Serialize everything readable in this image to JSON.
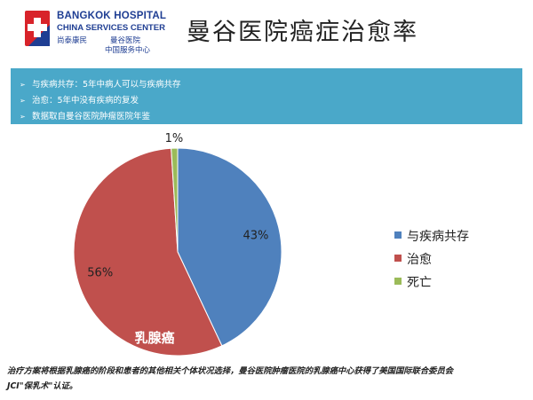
{
  "logo": {
    "en_line1": "BANGKOK HOSPITAL",
    "en_line2": "CHINA SERVICES CENTER",
    "cn_left": "尚泰康民",
    "cn_right1": "曼谷医院",
    "cn_right2": "中国服务中心"
  },
  "title": "曼谷医院癌症治愈率",
  "banner": {
    "items": [
      "与疾病共存：5年中病人可以与疾病共存",
      "治愈：5年中没有疾病的复发",
      "数据取自曼谷医院肿瘤医院年鉴"
    ]
  },
  "colors": {
    "banner": "#4aa8c9",
    "brand": "#1f3e93",
    "brand_red": "#d8232a"
  },
  "chart_data": {
    "type": "pie",
    "slices": [
      {
        "label": "与疾病共存",
        "value": 43,
        "display": "43%",
        "color": "#4f81bd"
      },
      {
        "label": "治愈",
        "value": 56,
        "display": "56%",
        "color": "#c0504d"
      },
      {
        "label": "死亡",
        "value": 1,
        "display": "1%",
        "color": "#9bbb59"
      }
    ],
    "annotation": "乳腺癌",
    "legend_position": "right"
  },
  "footer": {
    "line1": "治疗方案将根据乳腺癌的阶段和患者的其他相关个体状况选择，曼谷医院肿瘤医院的乳腺癌中心获得了美国国际联合委员会",
    "line2": "JCI\"保乳术\"认证。"
  }
}
